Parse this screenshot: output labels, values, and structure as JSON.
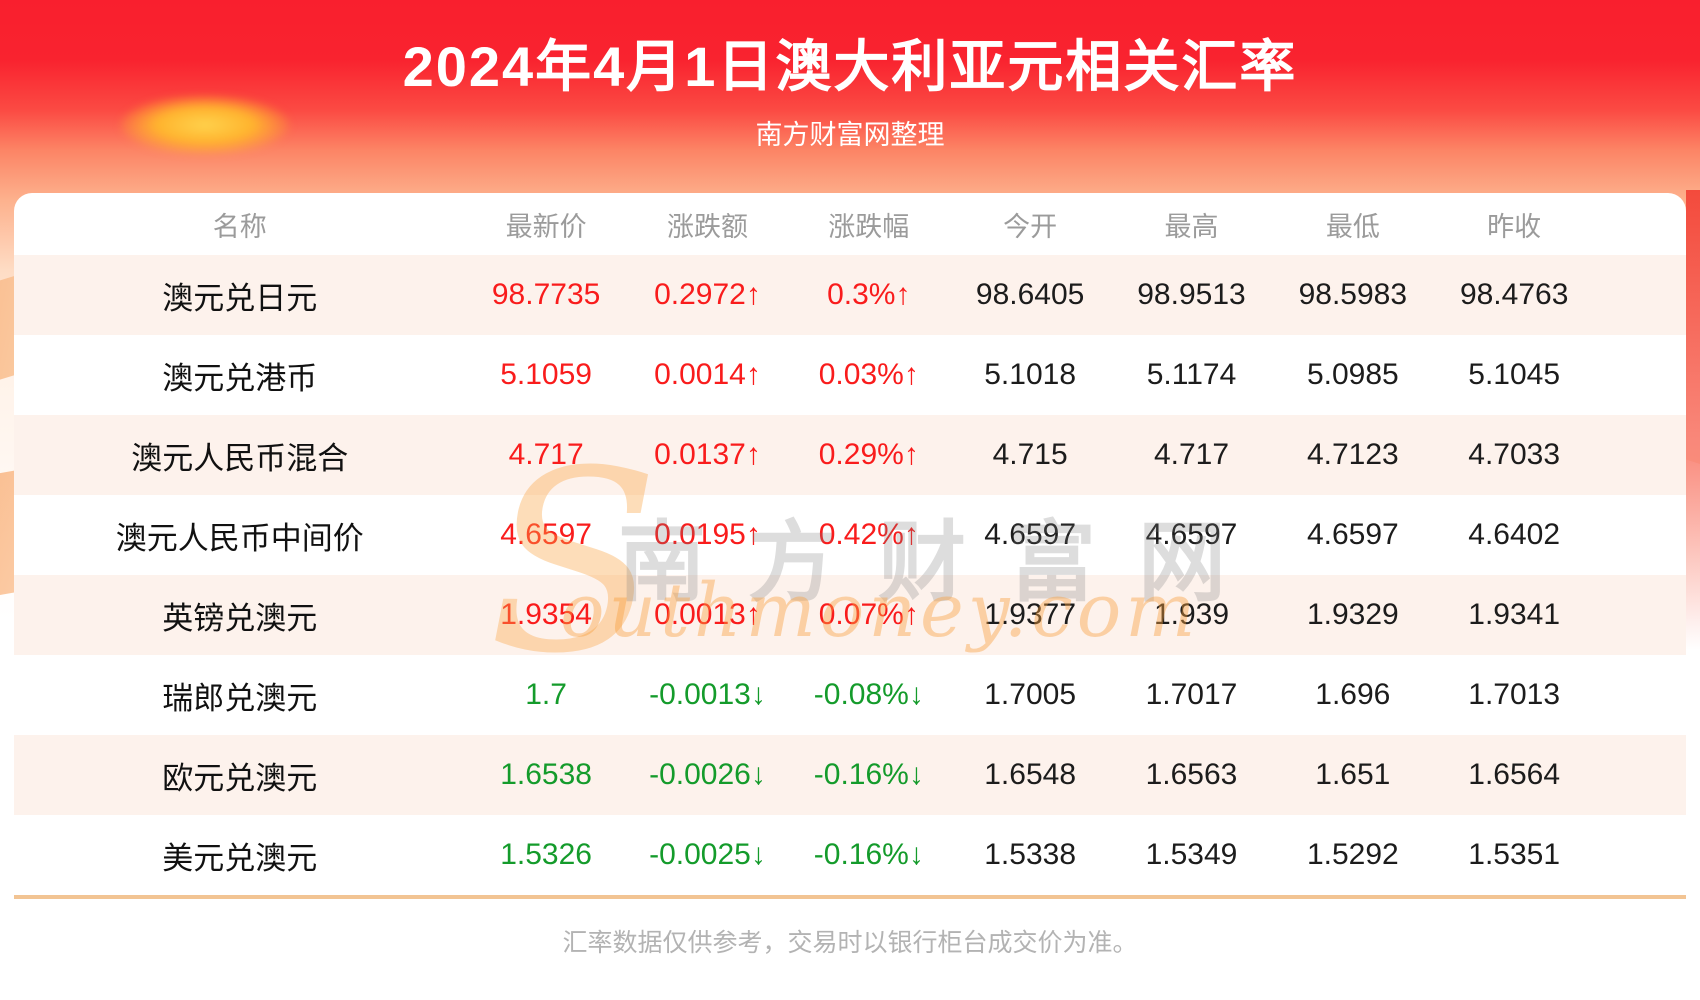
{
  "banner": {
    "title": "2024年4月1日澳大利亚元相关汇率",
    "subtitle": "南方财富网整理"
  },
  "chart_data": {
    "type": "table",
    "title": "2024年4月1日澳大利亚元相关汇率",
    "compiled_by": "南方财富网整理",
    "columns": [
      "名称",
      "最新价",
      "涨跌额",
      "涨跌幅",
      "今开",
      "最高",
      "最低",
      "昨收"
    ],
    "rows": [
      {
        "name": "澳元兑日元",
        "latest": "98.7735",
        "change": "0.2972↑",
        "change_pct": "0.3%↑",
        "open": "98.6405",
        "high": "98.9513",
        "low": "98.5983",
        "prev_close": "98.4763",
        "direction": "up"
      },
      {
        "name": "澳元兑港币",
        "latest": "5.1059",
        "change": "0.0014↑",
        "change_pct": "0.03%↑",
        "open": "5.1018",
        "high": "5.1174",
        "low": "5.0985",
        "prev_close": "5.1045",
        "direction": "up"
      },
      {
        "name": "澳元人民币混合",
        "latest": "4.717",
        "change": "0.0137↑",
        "change_pct": "0.29%↑",
        "open": "4.715",
        "high": "4.717",
        "low": "4.7123",
        "prev_close": "4.7033",
        "direction": "up"
      },
      {
        "name": "澳元人民币中间价",
        "latest": "4.6597",
        "change": "0.0195↑",
        "change_pct": "0.42%↑",
        "open": "4.6597",
        "high": "4.6597",
        "low": "4.6597",
        "prev_close": "4.6402",
        "direction": "up"
      },
      {
        "name": "英镑兑澳元",
        "latest": "1.9354",
        "change": "0.0013↑",
        "change_pct": "0.07%↑",
        "open": "1.9377",
        "high": "1.939",
        "low": "1.9329",
        "prev_close": "1.9341",
        "direction": "up"
      },
      {
        "name": "瑞郎兑澳元",
        "latest": "1.7",
        "change": "-0.0013↓",
        "change_pct": "-0.08%↓",
        "open": "1.7005",
        "high": "1.7017",
        "low": "1.696",
        "prev_close": "1.7013",
        "direction": "down"
      },
      {
        "name": "欧元兑澳元",
        "latest": "1.6538",
        "change": "-0.0026↓",
        "change_pct": "-0.16%↓",
        "open": "1.6548",
        "high": "1.6563",
        "low": "1.651",
        "prev_close": "1.6564",
        "direction": "down"
      },
      {
        "name": "美元兑澳元",
        "latest": "1.5326",
        "change": "-0.0025↓",
        "change_pct": "-0.16%↓",
        "open": "1.5338",
        "high": "1.5349",
        "low": "1.5292",
        "prev_close": "1.5351",
        "direction": "down"
      }
    ]
  },
  "watermark": {
    "swoosh": "S",
    "cn": "南方财富网",
    "en": "outhmoney.com"
  },
  "footer": {
    "note": "汇率数据仅供参考，交易时以银行柜台成交价为准。"
  },
  "colors": {
    "up": "#f91c1c",
    "down": "#149b2b",
    "header_text": "#9b9b9b",
    "row_alt_bg": "#fdf2ec",
    "divider": "#f2c493",
    "footer_text": "#b3b3b3",
    "banner_red": "#f9212e",
    "watermark_orange": "#f8a03e"
  }
}
